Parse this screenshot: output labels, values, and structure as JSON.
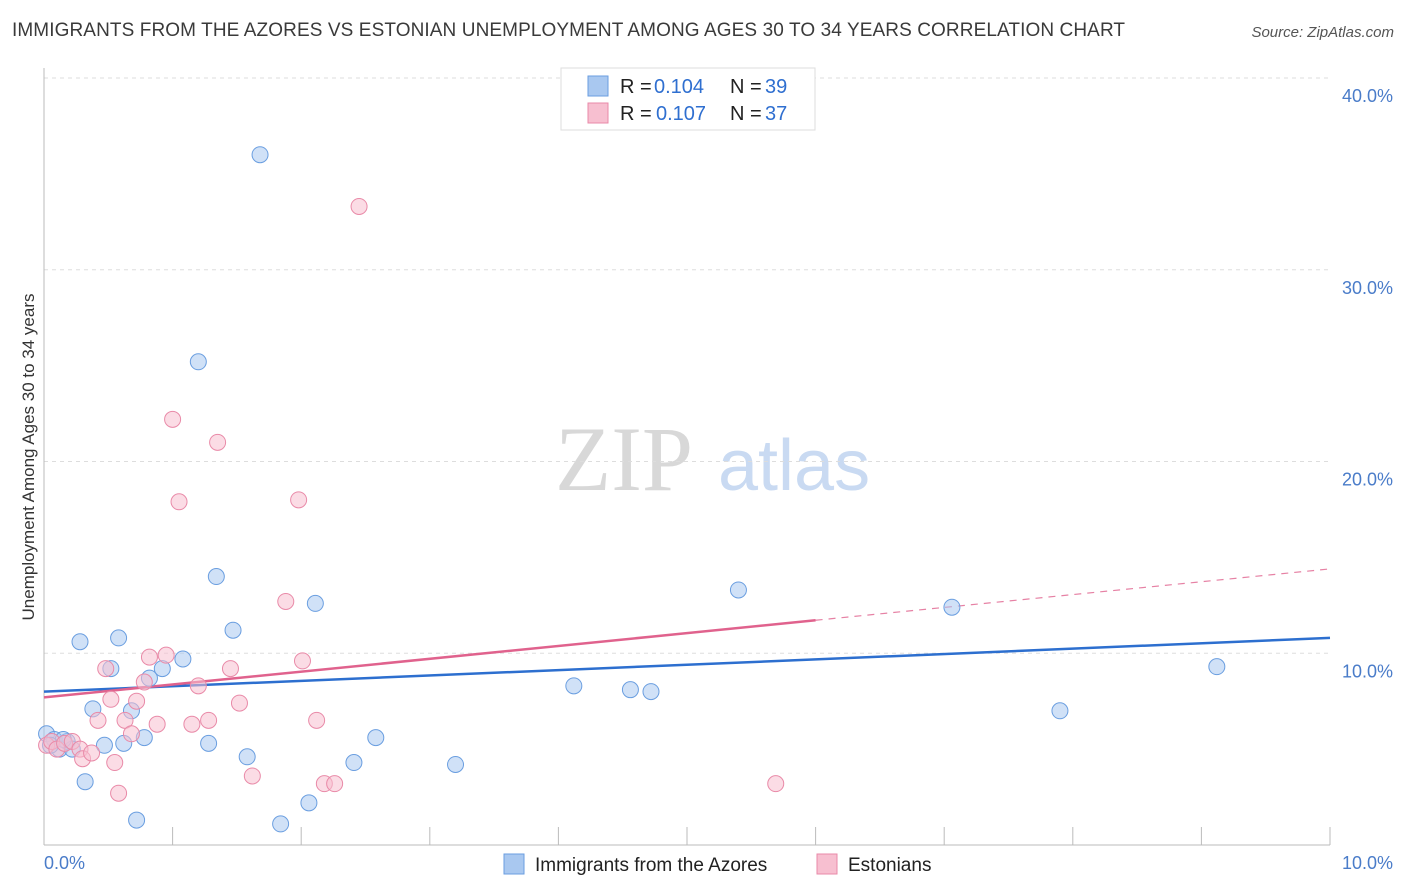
{
  "title": "IMMIGRANTS FROM THE AZORES VS ESTONIAN UNEMPLOYMENT AMONG AGES 30 TO 34 YEARS CORRELATION CHART",
  "source": "Source: ZipAtlas.com",
  "watermark": {
    "zip": "ZIP",
    "atlas": "atlas"
  },
  "legend": {
    "r_label": "R = ",
    "n_label": "N = ",
    "series": [
      {
        "r": "0.104",
        "n": "39"
      },
      {
        "r": "0.107",
        "n": "37"
      }
    ]
  },
  "colors": {
    "blue_fill": "#a9c8f0",
    "blue_stroke": "#6a9ee0",
    "blue_line": "#2d6fcf",
    "pink_fill": "#f7bfd0",
    "pink_stroke": "#e98aa8",
    "pink_line": "#e0628d",
    "tick_text": "#4a7cc9"
  },
  "chart_data": {
    "type": "scatter",
    "title": "IMMIGRANTS FROM THE AZORES VS ESTONIAN UNEMPLOYMENT AMONG AGES 30 TO 34 YEARS CORRELATION CHART",
    "xlabel": "",
    "ylabel": "Unemployment Among Ages 30 to 34 years",
    "xlim": [
      0,
      10
    ],
    "ylim": [
      0,
      40
    ],
    "x_tick_labels": [
      "0.0%",
      "10.0%"
    ],
    "y_ticks": [
      10,
      20,
      30,
      40
    ],
    "y_tick_labels": [
      "10.0%",
      "20.0%",
      "30.0%",
      "40.0%"
    ],
    "grid": true,
    "legend_position": "top-center",
    "series": [
      {
        "name": "Immigrants from the Azores",
        "color": "#a9c8f0",
        "r": 0.104,
        "n": 39,
        "trend": {
          "x0": 0.0,
          "y0": 8.0,
          "x1": 10.0,
          "y1": 10.8
        },
        "points": [
          [
            0.02,
            5.8
          ],
          [
            0.08,
            5.5
          ],
          [
            0.12,
            5.0
          ],
          [
            0.18,
            5.4
          ],
          [
            0.22,
            5.0
          ],
          [
            0.28,
            10.6
          ],
          [
            0.32,
            3.3
          ],
          [
            0.38,
            7.1
          ],
          [
            0.47,
            5.2
          ],
          [
            0.52,
            9.2
          ],
          [
            0.58,
            10.8
          ],
          [
            0.62,
            5.3
          ],
          [
            0.68,
            7.0
          ],
          [
            0.72,
            1.3
          ],
          [
            0.78,
            5.6
          ],
          [
            0.82,
            8.7
          ],
          [
            0.92,
            9.2
          ],
          [
            1.08,
            9.7
          ],
          [
            1.2,
            25.2
          ],
          [
            1.28,
            5.3
          ],
          [
            1.34,
            14.0
          ],
          [
            1.47,
            11.2
          ],
          [
            1.58,
            4.6
          ],
          [
            1.68,
            36.0
          ],
          [
            1.84,
            1.1
          ],
          [
            2.06,
            2.2
          ],
          [
            2.11,
            12.6
          ],
          [
            2.41,
            4.3
          ],
          [
            2.58,
            5.6
          ],
          [
            3.2,
            4.2
          ],
          [
            4.12,
            8.3
          ],
          [
            4.56,
            8.1
          ],
          [
            4.72,
            8.0
          ],
          [
            5.4,
            13.3
          ],
          [
            7.06,
            12.4
          ],
          [
            7.9,
            7.0
          ],
          [
            9.12,
            9.3
          ],
          [
            0.15,
            5.5
          ],
          [
            0.05,
            5.2
          ]
        ]
      },
      {
        "name": "Estonians",
        "color": "#f7bfd0",
        "r": 0.107,
        "n": 37,
        "trend": {
          "x0": 0.0,
          "y0": 7.7,
          "x1": 10.0,
          "y1": 14.4,
          "solid_until_x": 6.0
        },
        "points": [
          [
            0.02,
            5.2
          ],
          [
            0.06,
            5.4
          ],
          [
            0.1,
            5.0
          ],
          [
            0.16,
            5.3
          ],
          [
            0.22,
            5.4
          ],
          [
            0.28,
            5.0
          ],
          [
            0.3,
            4.5
          ],
          [
            0.37,
            4.8
          ],
          [
            0.42,
            6.5
          ],
          [
            0.48,
            9.2
          ],
          [
            0.52,
            7.6
          ],
          [
            0.55,
            4.3
          ],
          [
            0.58,
            2.7
          ],
          [
            0.63,
            6.5
          ],
          [
            0.68,
            5.8
          ],
          [
            0.72,
            7.5
          ],
          [
            0.78,
            8.5
          ],
          [
            0.82,
            9.8
          ],
          [
            0.88,
            6.3
          ],
          [
            0.95,
            9.9
          ],
          [
            1.0,
            22.2
          ],
          [
            1.05,
            17.9
          ],
          [
            1.15,
            6.3
          ],
          [
            1.2,
            8.3
          ],
          [
            1.28,
            6.5
          ],
          [
            1.35,
            21.0
          ],
          [
            1.45,
            9.2
          ],
          [
            1.52,
            7.4
          ],
          [
            1.62,
            3.6
          ],
          [
            1.88,
            12.7
          ],
          [
            1.98,
            18.0
          ],
          [
            2.01,
            9.6
          ],
          [
            2.12,
            6.5
          ],
          [
            2.18,
            3.2
          ],
          [
            2.26,
            3.2
          ],
          [
            2.45,
            33.3
          ],
          [
            5.69,
            3.2
          ]
        ]
      }
    ]
  },
  "bottom_legend": [
    {
      "label": "Immigrants from the Azores"
    },
    {
      "label": "Estonians"
    }
  ]
}
